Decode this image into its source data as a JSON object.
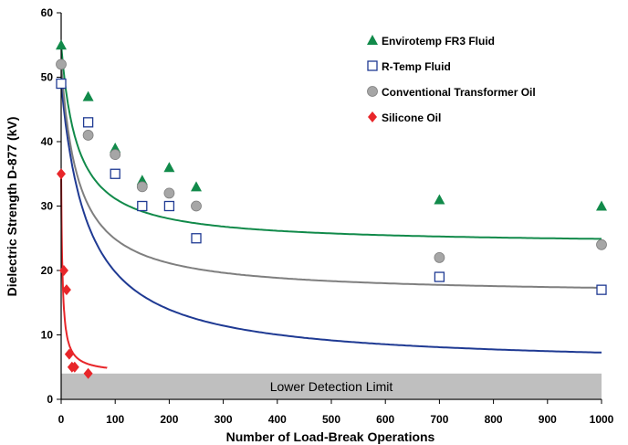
{
  "chart_data": {
    "type": "scatter",
    "title": "",
    "xlabel": "Number of Load-Break Operations",
    "ylabel": "Dielectric Strength D-877 (kV)",
    "xlim": [
      0,
      1000
    ],
    "ylim": [
      0,
      60
    ],
    "x_ticks": [
      "0",
      "100",
      "200",
      "300",
      "400",
      "500",
      "600",
      "700",
      "800",
      "900",
      "1000"
    ],
    "y_ticks": [
      "0",
      "10",
      "20",
      "30",
      "40",
      "50",
      "60"
    ],
    "grid": false,
    "legend_position": "top-right",
    "band": {
      "label": "Lower Detection Limit",
      "y_range": [
        0,
        4
      ],
      "color": "#bfbfbf"
    },
    "series": [
      {
        "name": "Envirotemp FR3 Fluid",
        "marker": "triangle",
        "color": "#118a4a",
        "x": [
          0,
          50,
          100,
          150,
          200,
          250,
          700,
          1000
        ],
        "y": [
          55,
          47,
          39,
          34,
          36,
          33,
          31,
          30
        ],
        "fit": {
          "a": 24,
          "b": 1.64,
          "c": 30
        }
      },
      {
        "name": "R-Temp Fluid",
        "marker": "square-open",
        "color": "#1f3a93",
        "x": [
          0,
          50,
          100,
          150,
          200,
          250,
          700,
          1000
        ],
        "y": [
          49,
          43,
          35,
          30,
          30,
          25,
          19,
          17
        ],
        "fit": {
          "a": 5.17,
          "b": 0.192,
          "c": 50
        }
      },
      {
        "name": "Conventional Transformer Oil",
        "marker": "circle",
        "color": "#a6a6a6",
        "fit_color": "#7f7f7f",
        "x": [
          0,
          50,
          100,
          150,
          200,
          250,
          700,
          1000
        ],
        "y": [
          52,
          41,
          38,
          33,
          32,
          30,
          22,
          24
        ],
        "fit": {
          "a": 16.2,
          "b": 1.09,
          "c": 32
        }
      },
      {
        "name": "Silicone Oil",
        "marker": "diamond",
        "color": "#e8262a",
        "fit_color": "#e8262a",
        "x": [
          0,
          5,
          10,
          15,
          20,
          25,
          50
        ],
        "y": [
          35,
          20,
          17,
          7,
          5,
          5,
          4
        ],
        "fit": {
          "a": 4,
          "b": 31,
          "c": 2.5,
          "xmax": 85
        }
      }
    ]
  }
}
